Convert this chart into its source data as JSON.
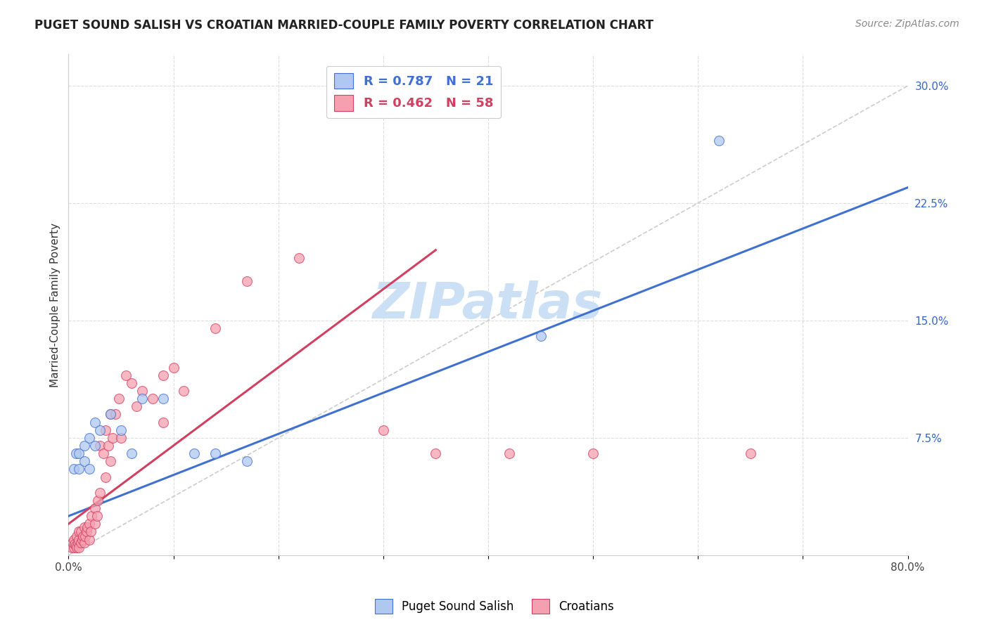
{
  "title": "PUGET SOUND SALISH VS CROATIAN MARRIED-COUPLE FAMILY POVERTY CORRELATION CHART",
  "source": "Source: ZipAtlas.com",
  "ylabel": "Married-Couple Family Poverty",
  "xlim": [
    0.0,
    0.8
  ],
  "ylim": [
    0.0,
    0.32
  ],
  "xticks": [
    0.0,
    0.1,
    0.2,
    0.3,
    0.4,
    0.5,
    0.6,
    0.7,
    0.8
  ],
  "xticklabels": [
    "0.0%",
    "",
    "",
    "",
    "",
    "",
    "",
    "",
    "80.0%"
  ],
  "yticks_right": [
    0.0,
    0.075,
    0.15,
    0.225,
    0.3
  ],
  "ytick_labels_right": [
    "",
    "7.5%",
    "15.0%",
    "22.5%",
    "30.0%"
  ],
  "watermark": "ZIPatlas",
  "legend_blue_r": "0.787",
  "legend_blue_n": "21",
  "legend_pink_r": "0.462",
  "legend_pink_n": "58",
  "blue_label": "Puget Sound Salish",
  "pink_label": "Croatians",
  "blue_scatter_x": [
    0.005,
    0.007,
    0.01,
    0.01,
    0.015,
    0.015,
    0.02,
    0.02,
    0.025,
    0.025,
    0.03,
    0.04,
    0.05,
    0.06,
    0.07,
    0.09,
    0.12,
    0.14,
    0.17,
    0.45,
    0.62
  ],
  "blue_scatter_y": [
    0.055,
    0.065,
    0.055,
    0.065,
    0.06,
    0.07,
    0.055,
    0.075,
    0.07,
    0.085,
    0.08,
    0.09,
    0.08,
    0.065,
    0.1,
    0.1,
    0.065,
    0.065,
    0.06,
    0.14,
    0.265
  ],
  "pink_scatter_x": [
    0.003,
    0.004,
    0.005,
    0.005,
    0.006,
    0.007,
    0.008,
    0.008,
    0.009,
    0.01,
    0.01,
    0.01,
    0.012,
    0.012,
    0.013,
    0.014,
    0.015,
    0.015,
    0.016,
    0.017,
    0.018,
    0.02,
    0.02,
    0.021,
    0.022,
    0.025,
    0.025,
    0.027,
    0.028,
    0.03,
    0.03,
    0.033,
    0.035,
    0.035,
    0.038,
    0.04,
    0.04,
    0.042,
    0.045,
    0.048,
    0.05,
    0.055,
    0.06,
    0.065,
    0.07,
    0.08,
    0.09,
    0.09,
    0.1,
    0.11,
    0.14,
    0.17,
    0.22,
    0.3,
    0.35,
    0.42,
    0.5,
    0.65
  ],
  "pink_scatter_y": [
    0.005,
    0.008,
    0.005,
    0.01,
    0.007,
    0.006,
    0.005,
    0.012,
    0.008,
    0.005,
    0.01,
    0.015,
    0.008,
    0.015,
    0.01,
    0.012,
    0.008,
    0.018,
    0.012,
    0.015,
    0.018,
    0.01,
    0.02,
    0.015,
    0.025,
    0.02,
    0.03,
    0.025,
    0.035,
    0.04,
    0.07,
    0.065,
    0.05,
    0.08,
    0.07,
    0.06,
    0.09,
    0.075,
    0.09,
    0.1,
    0.075,
    0.115,
    0.11,
    0.095,
    0.105,
    0.1,
    0.085,
    0.115,
    0.12,
    0.105,
    0.145,
    0.175,
    0.19,
    0.08,
    0.065,
    0.065,
    0.065,
    0.065
  ],
  "blue_line_x": [
    0.0,
    0.8
  ],
  "blue_line_y_start": 0.025,
  "blue_line_y_end": 0.235,
  "pink_line_x_start": 0.0,
  "pink_line_x_end": 0.35,
  "pink_line_y_start": 0.02,
  "pink_line_y_end": 0.195,
  "diag_line_x": [
    0.0,
    0.8
  ],
  "diag_line_y": [
    0.0,
    0.3
  ],
  "grid_color": "#dddddd",
  "blue_color": "#aec8f0",
  "pink_color": "#f5a0b0",
  "blue_line_color": "#4070d0",
  "pink_line_color": "#d04060",
  "diag_color": "#cccccc",
  "bg_color": "#ffffff",
  "title_fontsize": 12,
  "source_fontsize": 10,
  "watermark_fontsize": 52,
  "watermark_color": "#cce0f5",
  "marker_size": 100
}
